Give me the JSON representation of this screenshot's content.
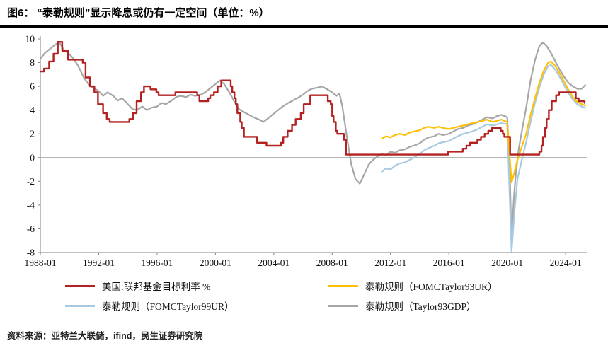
{
  "header": {
    "figure_label": "图6：",
    "title": "“泰勒规则”显示降息或仍有一定空间（单位：%）"
  },
  "footer": {
    "source": "资料来源：亚特兰大联储，ifind，民生证券研究院"
  },
  "chart_data": {
    "type": "line",
    "title": "“泰勒规则”显示降息或仍有一定空间",
    "unit": "%",
    "xlabel": "",
    "ylabel": "",
    "xlim": [
      1988,
      2025.5
    ],
    "ylim": [
      -8,
      10
    ],
    "grid": false,
    "zero_line": true,
    "legend_position": "bottom",
    "x_ticks": [
      {
        "value": 1988,
        "label": "1988-01"
      },
      {
        "value": 1992,
        "label": "1992-01"
      },
      {
        "value": 1996,
        "label": "1996-01"
      },
      {
        "value": 2000,
        "label": "2000-01"
      },
      {
        "value": 2004,
        "label": "2004-01"
      },
      {
        "value": 2008,
        "label": "2008-01"
      },
      {
        "value": 2012,
        "label": "2012-01"
      },
      {
        "value": 2016,
        "label": "2016-01"
      },
      {
        "value": 2020,
        "label": "2020-01"
      },
      {
        "value": 2024,
        "label": "2024-01"
      }
    ],
    "y_ticks": [
      10,
      8,
      6,
      4,
      2,
      0,
      -2,
      -4,
      -6,
      -8
    ],
    "series": [
      {
        "name": "美国:联邦基金目标利率 %",
        "color": "#b42121",
        "width": 2.4,
        "step": true,
        "points": [
          [
            1988.0,
            7.25
          ],
          [
            1988.25,
            7.5
          ],
          [
            1988.6,
            8.1
          ],
          [
            1988.9,
            8.75
          ],
          [
            1989.2,
            9.75
          ],
          [
            1989.5,
            9.0
          ],
          [
            1989.9,
            8.25
          ],
          [
            1990.9,
            8.0
          ],
          [
            1991.1,
            6.75
          ],
          [
            1991.4,
            6.0
          ],
          [
            1991.7,
            5.5
          ],
          [
            1991.95,
            4.5
          ],
          [
            1992.3,
            3.75
          ],
          [
            1992.55,
            3.25
          ],
          [
            1992.75,
            3.0
          ],
          [
            1994.1,
            3.25
          ],
          [
            1994.35,
            3.75
          ],
          [
            1994.6,
            4.75
          ],
          [
            1994.9,
            5.5
          ],
          [
            1995.1,
            6.0
          ],
          [
            1995.55,
            5.75
          ],
          [
            1995.95,
            5.5
          ],
          [
            1996.1,
            5.25
          ],
          [
            1997.25,
            5.5
          ],
          [
            1998.75,
            5.25
          ],
          [
            1998.9,
            4.75
          ],
          [
            1999.5,
            5.0
          ],
          [
            1999.65,
            5.25
          ],
          [
            1999.9,
            5.5
          ],
          [
            2000.15,
            6.0
          ],
          [
            2000.4,
            6.5
          ],
          [
            2001.05,
            6.0
          ],
          [
            2001.15,
            5.5
          ],
          [
            2001.3,
            5.0
          ],
          [
            2001.4,
            4.5
          ],
          [
            2001.5,
            3.75
          ],
          [
            2001.7,
            3.0
          ],
          [
            2001.8,
            2.5
          ],
          [
            2001.95,
            1.75
          ],
          [
            2002.85,
            1.25
          ],
          [
            2003.5,
            1.0
          ],
          [
            2004.5,
            1.25
          ],
          [
            2004.65,
            1.75
          ],
          [
            2004.95,
            2.25
          ],
          [
            2005.25,
            2.75
          ],
          [
            2005.5,
            3.25
          ],
          [
            2005.85,
            3.75
          ],
          [
            2006.05,
            4.5
          ],
          [
            2006.5,
            5.25
          ],
          [
            2007.7,
            4.75
          ],
          [
            2007.9,
            4.5
          ],
          [
            2008.0,
            3.5
          ],
          [
            2008.1,
            3.0
          ],
          [
            2008.25,
            2.25
          ],
          [
            2008.35,
            2.0
          ],
          [
            2008.8,
            1.5
          ],
          [
            2008.95,
            0.25
          ],
          [
            2015.95,
            0.5
          ],
          [
            2016.95,
            0.75
          ],
          [
            2017.2,
            1.0
          ],
          [
            2017.45,
            1.25
          ],
          [
            2017.95,
            1.5
          ],
          [
            2018.2,
            1.75
          ],
          [
            2018.45,
            2.0
          ],
          [
            2018.7,
            2.25
          ],
          [
            2018.95,
            2.5
          ],
          [
            2019.55,
            2.25
          ],
          [
            2019.7,
            2.0
          ],
          [
            2019.8,
            1.75
          ],
          [
            2020.2,
            0.25
          ],
          [
            2022.2,
            0.5
          ],
          [
            2022.35,
            1.0
          ],
          [
            2022.45,
            1.75
          ],
          [
            2022.6,
            2.5
          ],
          [
            2022.7,
            3.25
          ],
          [
            2022.85,
            4.0
          ],
          [
            2023.05,
            4.75
          ],
          [
            2023.35,
            5.25
          ],
          [
            2023.55,
            5.5
          ],
          [
            2024.7,
            5.0
          ],
          [
            2024.9,
            4.75
          ],
          [
            2025.3,
            4.6
          ]
        ]
      },
      {
        "name": "泰勒规则（FOMCTaylor93UR）",
        "color": "#ffc000",
        "width": 2.2,
        "step": false,
        "points": [
          [
            2011.4,
            1.6
          ],
          [
            2011.7,
            1.8
          ],
          [
            2012.0,
            1.7
          ],
          [
            2012.3,
            1.9
          ],
          [
            2012.6,
            2.0
          ],
          [
            2013.0,
            1.9
          ],
          [
            2013.3,
            2.1
          ],
          [
            2013.6,
            2.2
          ],
          [
            2014.0,
            2.3
          ],
          [
            2014.3,
            2.5
          ],
          [
            2014.6,
            2.6
          ],
          [
            2015.0,
            2.5
          ],
          [
            2015.3,
            2.6
          ],
          [
            2015.6,
            2.5
          ],
          [
            2016.0,
            2.4
          ],
          [
            2016.3,
            2.5
          ],
          [
            2016.6,
            2.6
          ],
          [
            2017.0,
            2.7
          ],
          [
            2017.3,
            2.8
          ],
          [
            2017.6,
            2.9
          ],
          [
            2018.0,
            3.0
          ],
          [
            2018.3,
            3.1
          ],
          [
            2018.6,
            3.2
          ],
          [
            2019.0,
            3.0
          ],
          [
            2019.3,
            3.1
          ],
          [
            2019.6,
            3.2
          ],
          [
            2020.0,
            3.0
          ],
          [
            2020.3,
            -2.1
          ],
          [
            2020.5,
            -1.2
          ],
          [
            2020.7,
            -0.2
          ],
          [
            2021.0,
            0.9
          ],
          [
            2021.3,
            2.0
          ],
          [
            2021.6,
            3.6
          ],
          [
            2021.9,
            5.0
          ],
          [
            2022.2,
            6.3
          ],
          [
            2022.5,
            7.3
          ],
          [
            2022.8,
            8.0
          ],
          [
            2023.0,
            8.1
          ],
          [
            2023.3,
            7.7
          ],
          [
            2023.6,
            7.1
          ],
          [
            2023.9,
            6.4
          ],
          [
            2024.2,
            5.7
          ],
          [
            2024.5,
            5.1
          ],
          [
            2024.8,
            4.7
          ],
          [
            2025.1,
            4.5
          ],
          [
            2025.35,
            4.4
          ]
        ]
      },
      {
        "name": "泰勒规则（FOMCTaylor99UR）",
        "color": "#a8c9e2",
        "width": 2.2,
        "step": false,
        "points": [
          [
            2011.4,
            -1.2
          ],
          [
            2011.7,
            -0.9
          ],
          [
            2012.0,
            -1.0
          ],
          [
            2012.3,
            -0.7
          ],
          [
            2012.6,
            -0.5
          ],
          [
            2013.0,
            -0.4
          ],
          [
            2013.3,
            -0.2
          ],
          [
            2013.6,
            0.0
          ],
          [
            2014.0,
            0.3
          ],
          [
            2014.3,
            0.6
          ],
          [
            2014.6,
            0.8
          ],
          [
            2015.0,
            1.0
          ],
          [
            2015.3,
            1.2
          ],
          [
            2015.6,
            1.3
          ],
          [
            2016.0,
            1.4
          ],
          [
            2016.3,
            1.6
          ],
          [
            2016.6,
            1.8
          ],
          [
            2017.0,
            2.0
          ],
          [
            2017.3,
            2.1
          ],
          [
            2017.6,
            2.2
          ],
          [
            2018.0,
            2.4
          ],
          [
            2018.3,
            2.6
          ],
          [
            2018.6,
            2.8
          ],
          [
            2019.0,
            2.7
          ],
          [
            2019.3,
            2.8
          ],
          [
            2019.6,
            2.9
          ],
          [
            2020.0,
            2.8
          ],
          [
            2020.3,
            -7.9
          ],
          [
            2020.5,
            -4.5
          ],
          [
            2020.7,
            -1.8
          ],
          [
            2021.0,
            -0.2
          ],
          [
            2021.3,
            1.3
          ],
          [
            2021.6,
            3.0
          ],
          [
            2021.9,
            4.6
          ],
          [
            2022.2,
            5.9
          ],
          [
            2022.5,
            7.0
          ],
          [
            2022.8,
            7.7
          ],
          [
            2023.0,
            7.8
          ],
          [
            2023.3,
            7.4
          ],
          [
            2023.6,
            6.8
          ],
          [
            2023.9,
            6.1
          ],
          [
            2024.2,
            5.4
          ],
          [
            2024.5,
            4.9
          ],
          [
            2024.8,
            4.5
          ],
          [
            2025.1,
            4.3
          ],
          [
            2025.35,
            4.2
          ]
        ]
      },
      {
        "name": "泰勒规则（Taylor93GDP）",
        "color": "#a6a6a6",
        "width": 2.2,
        "step": false,
        "points": [
          [
            1988.0,
            8.3
          ],
          [
            1988.3,
            8.8
          ],
          [
            1988.6,
            9.1
          ],
          [
            1989.0,
            9.5
          ],
          [
            1989.3,
            9.7
          ],
          [
            1989.6,
            9.1
          ],
          [
            1990.0,
            8.7
          ],
          [
            1990.3,
            8.3
          ],
          [
            1990.6,
            7.7
          ],
          [
            1991.0,
            6.7
          ],
          [
            1991.3,
            6.2
          ],
          [
            1991.6,
            5.9
          ],
          [
            1992.0,
            5.6
          ],
          [
            1992.3,
            5.2
          ],
          [
            1992.6,
            5.5
          ],
          [
            1993.0,
            5.2
          ],
          [
            1993.3,
            4.8
          ],
          [
            1993.6,
            5.0
          ],
          [
            1994.0,
            4.5
          ],
          [
            1994.3,
            4.1
          ],
          [
            1994.6,
            4.0
          ],
          [
            1995.0,
            4.3
          ],
          [
            1995.3,
            4.0
          ],
          [
            1995.6,
            4.2
          ],
          [
            1996.0,
            4.3
          ],
          [
            1996.3,
            4.6
          ],
          [
            1996.6,
            4.5
          ],
          [
            1997.0,
            4.8
          ],
          [
            1997.3,
            5.1
          ],
          [
            1997.6,
            5.2
          ],
          [
            1998.0,
            5.1
          ],
          [
            1998.3,
            5.3
          ],
          [
            1998.6,
            5.2
          ],
          [
            1999.0,
            5.3
          ],
          [
            1999.3,
            5.5
          ],
          [
            1999.6,
            5.8
          ],
          [
            2000.0,
            6.2
          ],
          [
            2000.3,
            6.5
          ],
          [
            2000.6,
            6.2
          ],
          [
            2001.0,
            5.4
          ],
          [
            2001.3,
            4.7
          ],
          [
            2001.6,
            4.1
          ],
          [
            2002.0,
            3.8
          ],
          [
            2002.3,
            3.6
          ],
          [
            2002.6,
            3.4
          ],
          [
            2003.0,
            3.2
          ],
          [
            2003.3,
            3.0
          ],
          [
            2003.6,
            3.3
          ],
          [
            2004.0,
            3.7
          ],
          [
            2004.3,
            4.0
          ],
          [
            2004.6,
            4.3
          ],
          [
            2005.0,
            4.6
          ],
          [
            2005.3,
            4.8
          ],
          [
            2005.6,
            5.0
          ],
          [
            2006.0,
            5.3
          ],
          [
            2006.3,
            5.6
          ],
          [
            2006.6,
            5.8
          ],
          [
            2007.0,
            5.9
          ],
          [
            2007.3,
            6.0
          ],
          [
            2007.6,
            5.8
          ],
          [
            2008.0,
            5.5
          ],
          [
            2008.3,
            5.2
          ],
          [
            2008.5,
            5.4
          ],
          [
            2008.7,
            4.3
          ],
          [
            2009.0,
            1.8
          ],
          [
            2009.3,
            -0.5
          ],
          [
            2009.6,
            -1.8
          ],
          [
            2009.9,
            -2.2
          ],
          [
            2010.2,
            -1.4
          ],
          [
            2010.5,
            -0.6
          ],
          [
            2010.8,
            -0.2
          ],
          [
            2011.1,
            0.1
          ],
          [
            2011.4,
            0.3
          ],
          [
            2011.7,
            0.2
          ],
          [
            2012.0,
            0.5
          ],
          [
            2012.3,
            0.4
          ],
          [
            2012.6,
            0.6
          ],
          [
            2013.0,
            0.7
          ],
          [
            2013.3,
            0.9
          ],
          [
            2013.6,
            1.0
          ],
          [
            2014.0,
            1.2
          ],
          [
            2014.3,
            1.5
          ],
          [
            2014.6,
            1.7
          ],
          [
            2015.0,
            1.8
          ],
          [
            2015.3,
            2.0
          ],
          [
            2015.6,
            1.9
          ],
          [
            2016.0,
            2.0
          ],
          [
            2016.3,
            2.2
          ],
          [
            2016.6,
            2.4
          ],
          [
            2017.0,
            2.5
          ],
          [
            2017.3,
            2.7
          ],
          [
            2017.6,
            2.8
          ],
          [
            2018.0,
            3.0
          ],
          [
            2018.3,
            3.2
          ],
          [
            2018.6,
            3.4
          ],
          [
            2019.0,
            3.3
          ],
          [
            2019.3,
            3.5
          ],
          [
            2019.6,
            3.6
          ],
          [
            2020.0,
            3.4
          ],
          [
            2020.15,
            0.0
          ],
          [
            2020.3,
            -7.2
          ],
          [
            2020.45,
            -3.5
          ],
          [
            2020.6,
            -1.2
          ],
          [
            2020.8,
            0.8
          ],
          [
            2021.0,
            2.2
          ],
          [
            2021.3,
            4.2
          ],
          [
            2021.6,
            6.5
          ],
          [
            2021.9,
            8.2
          ],
          [
            2022.2,
            9.4
          ],
          [
            2022.45,
            9.7
          ],
          [
            2022.7,
            9.4
          ],
          [
            2023.0,
            8.8
          ],
          [
            2023.3,
            8.1
          ],
          [
            2023.6,
            7.4
          ],
          [
            2023.9,
            6.8
          ],
          [
            2024.2,
            6.3
          ],
          [
            2024.5,
            6.0
          ],
          [
            2024.8,
            5.8
          ],
          [
            2025.1,
            5.8
          ],
          [
            2025.35,
            6.1
          ]
        ]
      }
    ]
  }
}
